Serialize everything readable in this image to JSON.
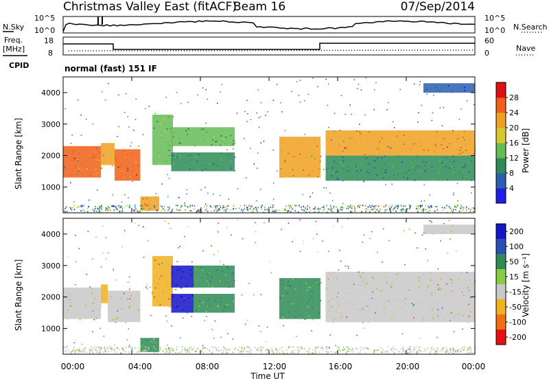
{
  "header": {
    "title": "Christmas Valley East (fitACF)",
    "beam": "Beam 16",
    "date": "07/Sep/2014"
  },
  "top_panels": {
    "nsky_label": "N.Sky",
    "nsearch_label": "N.Search",
    "noise_ticks_left": [
      "10^5",
      "10^0"
    ],
    "noise_ticks_right": [
      "10^5",
      "10^0"
    ],
    "freq_label_1": "Freq.",
    "freq_label_2": "[MHz]",
    "freq_ticks": [
      "18",
      "8"
    ],
    "nave_label": "Nave",
    "nave_ticks": [
      "60",
      "0"
    ],
    "cpid_label": "CPID",
    "mode_text": "normal (fast) 151 IF"
  },
  "axes": {
    "x_ticks": [
      "00:00",
      "04:00",
      "08:00",
      "12:00",
      "16:00",
      "20:00",
      "00:00"
    ],
    "x_label": "Time UT",
    "y_label": "Slant Range [km]",
    "y_ticks": [
      "1000",
      "2000",
      "3000",
      "4000"
    ]
  },
  "colorbars": {
    "power": {
      "label": "Power [dB]",
      "ticks": [
        "4",
        "8",
        "12",
        "16",
        "20",
        "24",
        "28"
      ],
      "colors": [
        "#1e1ee6",
        "#2a5fb0",
        "#2e8b57",
        "#66bb55",
        "#d8c830",
        "#f0a020",
        "#f06018",
        "#e01010"
      ]
    },
    "velocity": {
      "label": "Velocity [m s⁻¹]",
      "ticks": [
        "200",
        "100",
        "50",
        "15",
        "-15",
        "-50",
        "-100",
        "-200"
      ],
      "colors": [
        "#1414c8",
        "#2a50b8",
        "#2e8b57",
        "#88cc44",
        "#c8c8c8",
        "#f0b020",
        "#f07010",
        "#e81010"
      ]
    }
  },
  "chart_data": [
    {
      "type": "heatmap",
      "name": "Power",
      "x_range_hours": [
        0,
        24
      ],
      "ylim": [
        180,
        4500
      ],
      "value_label": "Power [dB]",
      "regions": [
        {
          "t": [
            0.0,
            2.2
          ],
          "r": [
            1300,
            2300
          ],
          "v": 24
        },
        {
          "t": [
            2.2,
            3.0
          ],
          "r": [
            1700,
            2400
          ],
          "v": 22
        },
        {
          "t": [
            3.0,
            4.5
          ],
          "r": [
            1200,
            2200
          ],
          "v": 24
        },
        {
          "t": [
            4.5,
            5.6
          ],
          "r": [
            250,
            700
          ],
          "v": 22
        },
        {
          "t": [
            5.2,
            6.4
          ],
          "r": [
            1700,
            3300
          ],
          "v": 14
        },
        {
          "t": [
            6.3,
            10.0
          ],
          "r": [
            2300,
            2900
          ],
          "v": 12
        },
        {
          "t": [
            6.3,
            10.0
          ],
          "r": [
            1500,
            2100
          ],
          "v": 11
        },
        {
          "t": [
            12.6,
            15.0
          ],
          "r": [
            1300,
            2600
          ],
          "v": 22
        },
        {
          "t": [
            15.3,
            24.0
          ],
          "r": [
            2000,
            2800
          ],
          "v": 22
        },
        {
          "t": [
            15.3,
            24.0
          ],
          "r": [
            1200,
            2000
          ],
          "v": 9
        },
        {
          "t": [
            21.0,
            24.0
          ],
          "r": [
            4000,
            4300
          ],
          "v": 6
        }
      ]
    },
    {
      "type": "heatmap",
      "name": "Velocity",
      "x_range_hours": [
        0,
        24
      ],
      "ylim": [
        180,
        4500
      ],
      "value_label": "Velocity [m s⁻¹]",
      "regions": [
        {
          "t": [
            0.0,
            2.2
          ],
          "r": [
            1300,
            2300
          ],
          "v": 0
        },
        {
          "t": [
            2.2,
            2.6
          ],
          "r": [
            1800,
            2400
          ],
          "v": -30
        },
        {
          "t": [
            2.6,
            4.5
          ],
          "r": [
            1200,
            2200
          ],
          "v": 0
        },
        {
          "t": [
            4.5,
            5.6
          ],
          "r": [
            250,
            700
          ],
          "v": 30
        },
        {
          "t": [
            5.2,
            6.4
          ],
          "r": [
            1700,
            3300
          ],
          "v": -30
        },
        {
          "t": [
            6.3,
            7.6
          ],
          "r": [
            2300,
            3000
          ],
          "v": 180
        },
        {
          "t": [
            6.3,
            7.6
          ],
          "r": [
            1500,
            2100
          ],
          "v": 180
        },
        {
          "t": [
            7.6,
            10.0
          ],
          "r": [
            2300,
            3000
          ],
          "v": 40
        },
        {
          "t": [
            7.6,
            10.0
          ],
          "r": [
            1500,
            2100
          ],
          "v": 40
        },
        {
          "t": [
            12.6,
            15.0
          ],
          "r": [
            1300,
            2600
          ],
          "v": 35
        },
        {
          "t": [
            15.3,
            24.0
          ],
          "r": [
            2000,
            2800
          ],
          "v": 0
        },
        {
          "t": [
            15.3,
            24.0
          ],
          "r": [
            1200,
            2000
          ],
          "v": 0
        },
        {
          "t": [
            21.0,
            24.0
          ],
          "r": [
            4000,
            4300
          ],
          "v": 0
        }
      ]
    }
  ]
}
